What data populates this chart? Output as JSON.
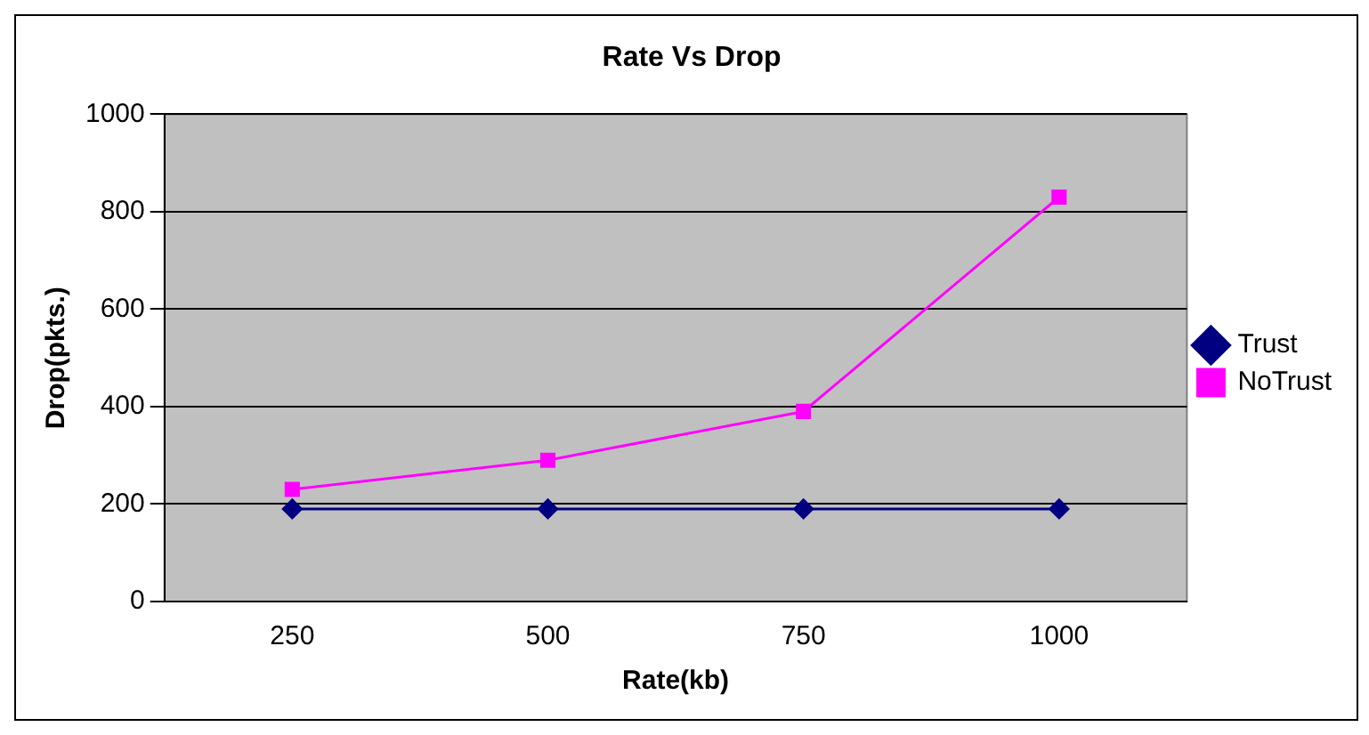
{
  "chart_data": {
    "type": "line",
    "title": "Rate Vs Drop",
    "xlabel": "Rate(kb)",
    "ylabel": "Drop(pkts.)",
    "categories": [
      "250",
      "500",
      "750",
      "1000"
    ],
    "series": [
      {
        "name": "Trust",
        "color": "#000080",
        "values": [
          190,
          190,
          190,
          190
        ],
        "marker": "diamond"
      },
      {
        "name": "NoTrust",
        "color": "#ff00ff",
        "values": [
          230,
          290,
          390,
          830
        ],
        "marker": "square"
      }
    ],
    "ylim": [
      0,
      1000
    ],
    "yticks": [
      0,
      200,
      400,
      600,
      800,
      1000
    ],
    "grid": "y",
    "legend": "right"
  }
}
